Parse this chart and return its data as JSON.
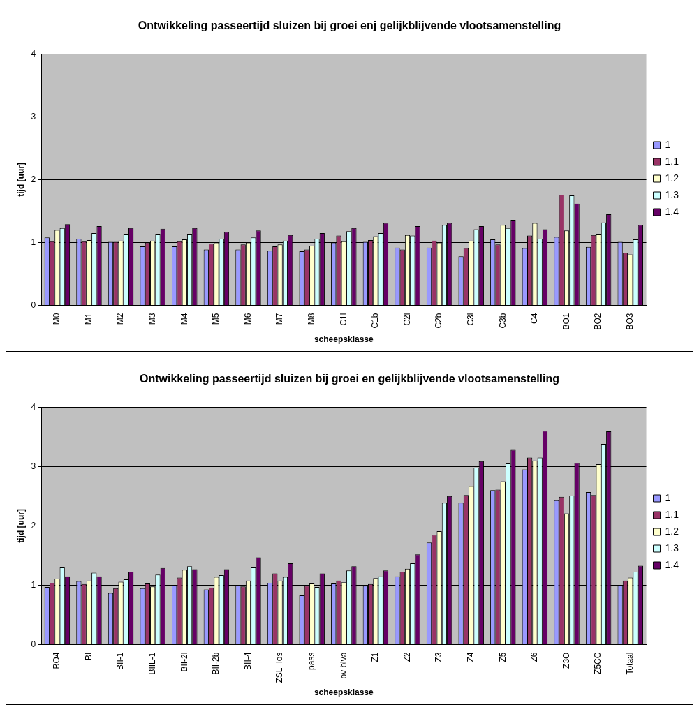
{
  "chart_data": [
    {
      "type": "bar",
      "title": "Ontwikkeling passeertijd sluizen bij groei enj gelijkblijvende vlootsamenstelling",
      "xlabel": "scheepsklasse",
      "ylabel": "tijd [uur]",
      "categories": [
        "M0",
        "M1",
        "M2",
        "M3",
        "M4",
        "M5",
        "M6",
        "M7",
        "M8",
        "C1l",
        "C1b",
        "C2l",
        "C2b",
        "C3l",
        "C3b",
        "C4",
        "BO1",
        "BO2",
        "BO3"
      ],
      "ylim": [
        0,
        4
      ],
      "yticks": [
        0,
        1,
        2,
        3,
        4
      ],
      "grid": "y",
      "legend": "right",
      "series": [
        {
          "name": "1",
          "color": "#9999ff",
          "values": [
            1.08,
            1.06,
            1.01,
            0.94,
            0.94,
            0.89,
            0.89,
            0.87,
            0.86,
            1.0,
            1.01,
            0.92,
            0.92,
            0.78,
            1.05,
            0.91,
            1.09,
            0.93,
            1.01
          ]
        },
        {
          "name": "1.1",
          "color": "#993366",
          "values": [
            1.02,
            1.02,
            1.01,
            1.0,
            1.02,
            0.98,
            0.97,
            0.94,
            0.89,
            1.11,
            1.04,
            0.89,
            1.03,
            0.91,
            0.97,
            1.11,
            1.76,
            1.12,
            0.84
          ]
        },
        {
          "name": "1.2",
          "color": "#ffffcc",
          "values": [
            1.2,
            1.04,
            1.03,
            1.03,
            1.05,
            1.0,
            1.0,
            0.97,
            0.95,
            1.02,
            1.1,
            1.12,
            1.0,
            1.03,
            1.28,
            1.31,
            1.19,
            1.14,
            0.81
          ]
        },
        {
          "name": "1.3",
          "color": "#ccffff",
          "values": [
            1.23,
            1.15,
            1.14,
            1.14,
            1.14,
            1.06,
            1.08,
            1.03,
            1.06,
            1.18,
            1.15,
            1.11,
            1.28,
            1.21,
            1.23,
            1.06,
            1.75,
            1.32,
            1.05
          ]
        },
        {
          "name": "1.4",
          "color": "#660066",
          "values": [
            1.29,
            1.26,
            1.23,
            1.22,
            1.23,
            1.17,
            1.19,
            1.12,
            1.15,
            1.23,
            1.31,
            1.26,
            1.31,
            1.26,
            1.36,
            1.21,
            1.62,
            1.45,
            1.28
          ]
        }
      ]
    },
    {
      "type": "bar",
      "title": "Ontwikkeling passeertijd sluizen bij groei en gelijkblijvende vlootsamenstelling",
      "xlabel": "scheepsklasse",
      "ylabel": "tijd [uur]",
      "categories": [
        "BO4",
        "BI",
        "BII-1",
        "BIIL-1",
        "BII-2l",
        "BII-2b",
        "BII-4",
        "ZSL_los",
        "pass",
        "ov biva",
        "Z1",
        "Z2",
        "Z3",
        "Z4",
        "Z5",
        "Z6",
        "Z3O",
        "Z5CC",
        "Totaal"
      ],
      "ylim": [
        0,
        4
      ],
      "yticks": [
        0,
        1,
        2,
        3,
        4
      ],
      "grid": "y",
      "legend": "right",
      "series": [
        {
          "name": "1",
          "color": "#9999ff",
          "values": [
            0.97,
            1.07,
            0.87,
            0.95,
            1.0,
            0.93,
            1.0,
            1.04,
            0.83,
            1.03,
            0.99,
            1.15,
            1.72,
            2.39,
            2.6,
            2.95,
            2.43,
            2.57,
            1.0
          ]
        },
        {
          "name": "1.1",
          "color": "#993366",
          "values": [
            1.04,
            1.02,
            0.95,
            1.03,
            1.13,
            0.96,
            0.98,
            1.2,
            0.99,
            1.08,
            1.02,
            1.23,
            1.85,
            2.52,
            2.61,
            3.15,
            2.49,
            2.52,
            1.08
          ]
        },
        {
          "name": "1.2",
          "color": "#ffffcc",
          "values": [
            1.11,
            1.08,
            1.06,
            0.98,
            1.26,
            1.14,
            1.08,
            1.08,
            1.03,
            1.05,
            1.12,
            1.28,
            1.91,
            2.67,
            2.75,
            3.1,
            2.21,
            3.04,
            1.13
          ]
        },
        {
          "name": "1.3",
          "color": "#ccffff",
          "values": [
            1.3,
            1.21,
            1.1,
            1.18,
            1.32,
            1.17,
            1.3,
            1.14,
            0.97,
            1.25,
            1.15,
            1.37,
            2.39,
            2.98,
            3.05,
            3.15,
            2.51,
            3.38,
            1.23
          ]
        },
        {
          "name": "1.4",
          "color": "#660066",
          "values": [
            1.15,
            1.15,
            1.23,
            1.29,
            1.27,
            1.27,
            1.47,
            1.37,
            1.2,
            1.32,
            1.25,
            1.52,
            2.5,
            3.09,
            3.28,
            3.6,
            3.06,
            3.59,
            1.33
          ]
        }
      ]
    }
  ]
}
